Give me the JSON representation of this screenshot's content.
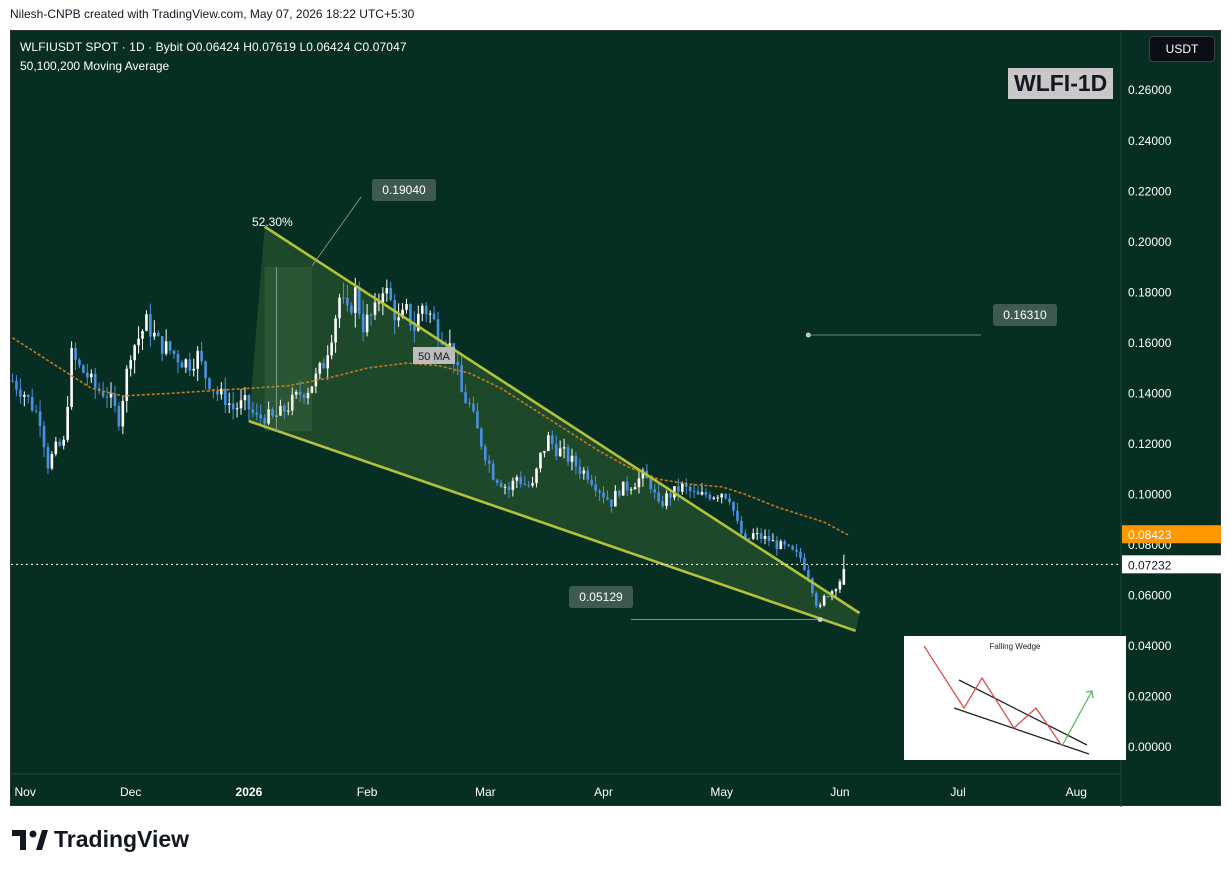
{
  "credit": "Nilesh-CNPB created with TradingView.com, May 07, 2026 18:22 UTC+5:30",
  "header": {
    "line1": "WLFIUSDT SPOT · 1D · Bybit  O0.06424  H0.07619  L0.06424  C0.07047",
    "line2": "50,100,200 Moving Average"
  },
  "currency_button": "USDT",
  "watermark": "WLFI-1D",
  "brand": "TradingView",
  "inset_title": "Falling Wedge",
  "colors": {
    "background": "#062e22",
    "candle_up": "#ffffff",
    "candle_down": "#4a90e2",
    "wedge_line": "#b4c23a",
    "ma": "#c8781e",
    "ma_label_bg": "#ff9800"
  },
  "chart_data": {
    "type": "candlestick",
    "symbol": "WLFIUSDT",
    "interval": "1D",
    "exchange": "Bybit",
    "ohlc_last": {
      "open": 0.06424,
      "high": 0.07619,
      "low": 0.06424,
      "close": 0.07047
    },
    "y_ticks": [
      "0.00000",
      "0.02000",
      "0.04000",
      "0.06000",
      "0.08000",
      "0.10000",
      "0.12000",
      "0.14000",
      "0.16000",
      "0.18000",
      "0.20000",
      "0.22000",
      "0.24000",
      "0.26000"
    ],
    "x_ticks": [
      "Nov",
      "Dec",
      "2026",
      "Feb",
      "Mar",
      "Apr",
      "May",
      "Jun",
      "Jul",
      "Aug"
    ],
    "ylim": [
      -0.019,
      0.263
    ],
    "price_labels": {
      "ma": "0.08423",
      "current": "0.07232"
    },
    "current_price": 0.07232,
    "ma50_last": 0.08423,
    "annotations": {
      "high": "0.19040",
      "low": "0.05129",
      "target": "0.16310",
      "move_pct": "52.30%",
      "ma_label": "50 MA"
    },
    "trend_points": [
      [
        0,
        0.145
      ],
      [
        3,
        0.14
      ],
      [
        7,
        0.13
      ],
      [
        9,
        0.112
      ],
      [
        11,
        0.118
      ],
      [
        13,
        0.12
      ],
      [
        15,
        0.155
      ],
      [
        17,
        0.15
      ],
      [
        19,
        0.147
      ],
      [
        21,
        0.142
      ],
      [
        24,
        0.14
      ],
      [
        27,
        0.13
      ],
      [
        30,
        0.157
      ],
      [
        32,
        0.162
      ],
      [
        34,
        0.168
      ],
      [
        37,
        0.16
      ],
      [
        40,
        0.157
      ],
      [
        43,
        0.153
      ],
      [
        45,
        0.152
      ],
      [
        47,
        0.155
      ],
      [
        49,
        0.147
      ],
      [
        52,
        0.14
      ],
      [
        54,
        0.138
      ],
      [
        56,
        0.134
      ],
      [
        59,
        0.136
      ],
      [
        62,
        0.13
      ],
      [
        64,
        0.131
      ],
      [
        66,
        0.13
      ],
      [
        68,
        0.132
      ],
      [
        70,
        0.135
      ],
      [
        73,
        0.14
      ],
      [
        75,
        0.142
      ],
      [
        77,
        0.146
      ],
      [
        79,
        0.152
      ],
      [
        81,
        0.164
      ],
      [
        83,
        0.178
      ],
      [
        85,
        0.171
      ],
      [
        87,
        0.18
      ],
      [
        89,
        0.167
      ],
      [
        92,
        0.172
      ],
      [
        94,
        0.183
      ],
      [
        96,
        0.176
      ],
      [
        98,
        0.168
      ],
      [
        100,
        0.172
      ],
      [
        102,
        0.166
      ],
      [
        104,
        0.175
      ],
      [
        106,
        0.171
      ],
      [
        108,
        0.165
      ],
      [
        110,
        0.162
      ],
      [
        112,
        0.155
      ],
      [
        114,
        0.14
      ],
      [
        116,
        0.135
      ],
      [
        118,
        0.125
      ],
      [
        120,
        0.116
      ],
      [
        122,
        0.108
      ],
      [
        124,
        0.105
      ],
      [
        126,
        0.102
      ],
      [
        128,
        0.107
      ],
      [
        130,
        0.104
      ],
      [
        132,
        0.103
      ],
      [
        134,
        0.115
      ],
      [
        136,
        0.122
      ],
      [
        138,
        0.118
      ],
      [
        140,
        0.116
      ],
      [
        142,
        0.113
      ],
      [
        144,
        0.11
      ],
      [
        146,
        0.108
      ],
      [
        148,
        0.104
      ],
      [
        150,
        0.1
      ],
      [
        152,
        0.097
      ],
      [
        154,
        0.102
      ],
      [
        156,
        0.103
      ],
      [
        158,
        0.105
      ],
      [
        160,
        0.107
      ],
      [
        162,
        0.104
      ],
      [
        164,
        0.095
      ],
      [
        166,
        0.099
      ],
      [
        168,
        0.101
      ],
      [
        170,
        0.103
      ],
      [
        172,
        0.101
      ],
      [
        174,
        0.099
      ],
      [
        176,
        0.1
      ],
      [
        178,
        0.1
      ],
      [
        180,
        0.101
      ],
      [
        182,
        0.099
      ],
      [
        184,
        0.088
      ],
      [
        186,
        0.081
      ],
      [
        188,
        0.084
      ],
      [
        190,
        0.083
      ],
      [
        192,
        0.082
      ],
      [
        194,
        0.08
      ],
      [
        196,
        0.079
      ],
      [
        198,
        0.077
      ],
      [
        200,
        0.075
      ],
      [
        202,
        0.068
      ],
      [
        204,
        0.057
      ],
      [
        205,
        0.055
      ],
      [
        206,
        0.059
      ],
      [
        208,
        0.062
      ],
      [
        210,
        0.066
      ],
      [
        211,
        0.07
      ]
    ],
    "ma50": [
      [
        0,
        0.162
      ],
      [
        10,
        0.152
      ],
      [
        20,
        0.142
      ],
      [
        28,
        0.139
      ],
      [
        40,
        0.14
      ],
      [
        50,
        0.141
      ],
      [
        60,
        0.142
      ],
      [
        70,
        0.143
      ],
      [
        80,
        0.146
      ],
      [
        90,
        0.15
      ],
      [
        100,
        0.152
      ],
      [
        108,
        0.151
      ],
      [
        116,
        0.148
      ],
      [
        124,
        0.142
      ],
      [
        132,
        0.134
      ],
      [
        140,
        0.126
      ],
      [
        148,
        0.118
      ],
      [
        156,
        0.111
      ],
      [
        164,
        0.106
      ],
      [
        172,
        0.104
      ],
      [
        180,
        0.103
      ],
      [
        186,
        0.1
      ],
      [
        194,
        0.095
      ],
      [
        202,
        0.091
      ],
      [
        206,
        0.089
      ],
      [
        212,
        0.084
      ]
    ],
    "wedge_upper": [
      [
        64,
        0.206
      ],
      [
        215,
        0.053
      ]
    ],
    "wedge_lower": [
      [
        60,
        0.129
      ],
      [
        214,
        0.046
      ]
    ]
  }
}
